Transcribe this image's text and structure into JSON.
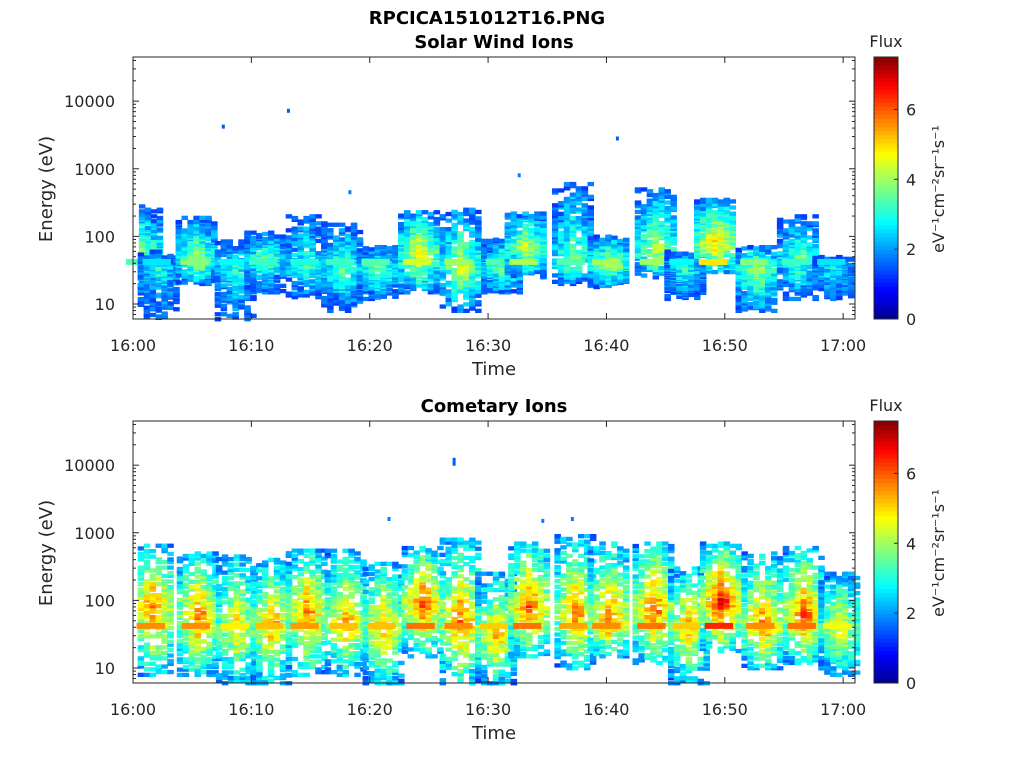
{
  "figure": {
    "filename": "RPCICA151012T16.PNG"
  },
  "colors": {
    "colormap": [
      "#00008f",
      "#0000ff",
      "#00ffff",
      "#ffff00",
      "#ff0000",
      "#800000"
    ]
  },
  "chart_data": [
    {
      "type": "heatmap",
      "title": "Solar Wind Ions",
      "xlabel": "Time",
      "ylabel": "Energy (eV)",
      "x_range": [
        "16:00",
        "17:01"
      ],
      "x_ticks": [
        "16:00",
        "16:10",
        "16:20",
        "16:30",
        "16:40",
        "16:50",
        "17:00"
      ],
      "y_scale": "log",
      "y_range": [
        6,
        45000
      ],
      "y_ticks": [
        10,
        100,
        1000,
        10000
      ],
      "y_tick_labels": [
        "10",
        "100",
        "1000",
        "10000"
      ],
      "colorbar": {
        "label": "Flux",
        "unit": "eV⁻¹cm⁻²sr⁻¹s⁻¹",
        "range": [
          0,
          7.5
        ],
        "ticks": [
          "0",
          "2",
          "4",
          "6"
        ]
      },
      "bursts": [
        {
          "t": 0.6,
          "peak_e": 60,
          "max_e": 280,
          "min_e": 20,
          "intensity": 3.8
        },
        {
          "t": 2.0,
          "peak_e": 35,
          "max_e": 60,
          "min_e": 6,
          "intensity": 3.0
        },
        {
          "t": 5.2,
          "peak_e": 45,
          "max_e": 190,
          "min_e": 20,
          "intensity": 4.2
        },
        {
          "t": 8.5,
          "peak_e": 35,
          "max_e": 90,
          "min_e": 6,
          "intensity": 3.2
        },
        {
          "t": 11.0,
          "peak_e": 50,
          "max_e": 120,
          "min_e": 15,
          "intensity": 3.6
        },
        {
          "t": 14.5,
          "peak_e": 35,
          "max_e": 200,
          "min_e": 12,
          "intensity": 3.4
        },
        {
          "t": 17.5,
          "peak_e": 35,
          "max_e": 150,
          "min_e": 8,
          "intensity": 3.6
        },
        {
          "t": 20.5,
          "peak_e": 35,
          "max_e": 70,
          "min_e": 12,
          "intensity": 3.8
        },
        {
          "t": 24.0,
          "peak_e": 60,
          "max_e": 230,
          "min_e": 15,
          "intensity": 4.8
        },
        {
          "t": 27.5,
          "peak_e": 35,
          "max_e": 250,
          "min_e": 8,
          "intensity": 4.4
        },
        {
          "t": 31.0,
          "peak_e": 35,
          "max_e": 90,
          "min_e": 15,
          "intensity": 3.8
        },
        {
          "t": 33.0,
          "peak_e": 70,
          "max_e": 220,
          "min_e": 25,
          "intensity": 4.5
        },
        {
          "t": 37.0,
          "peak_e": 40,
          "max_e": 600,
          "min_e": 20,
          "intensity": 3.8
        },
        {
          "t": 40.0,
          "peak_e": 40,
          "max_e": 100,
          "min_e": 18,
          "intensity": 4.4
        },
        {
          "t": 44.0,
          "peak_e": 60,
          "max_e": 500,
          "min_e": 25,
          "intensity": 4.4
        },
        {
          "t": 46.5,
          "peak_e": 35,
          "max_e": 60,
          "min_e": 12,
          "intensity": 3.2
        },
        {
          "t": 49.0,
          "peak_e": 80,
          "max_e": 350,
          "min_e": 30,
          "intensity": 5.3
        },
        {
          "t": 52.5,
          "peak_e": 35,
          "max_e": 70,
          "min_e": 8,
          "intensity": 4.2
        },
        {
          "t": 56.0,
          "peak_e": 50,
          "max_e": 200,
          "min_e": 12,
          "intensity": 3.6
        },
        {
          "t": 59.0,
          "peak_e": 35,
          "max_e": 50,
          "min_e": 12,
          "intensity": 3.0
        }
      ],
      "points": [
        {
          "t": 7.5,
          "e": 4200,
          "v": 1.5
        },
        {
          "t": 13.0,
          "e": 7200,
          "v": 1.5
        },
        {
          "t": 40.8,
          "e": 2800,
          "v": 1.5
        },
        {
          "t": 32.5,
          "e": 800,
          "v": 1.8
        },
        {
          "t": 18.2,
          "e": 450,
          "v": 1.8
        }
      ]
    },
    {
      "type": "heatmap",
      "title": "Cometary Ions",
      "xlabel": "Time",
      "ylabel": "Energy (eV)",
      "x_range": [
        "16:00",
        "17:01"
      ],
      "x_ticks": [
        "16:00",
        "16:10",
        "16:20",
        "16:30",
        "16:40",
        "16:50",
        "17:00"
      ],
      "y_scale": "log",
      "y_range": [
        6,
        45000
      ],
      "y_ticks": [
        10,
        100,
        1000,
        10000
      ],
      "y_tick_labels": [
        "10",
        "100",
        "1000",
        "10000"
      ],
      "colorbar": {
        "label": "Flux",
        "unit": "eV⁻¹cm⁻²sr⁻¹s⁻¹",
        "range": [
          0,
          7.5
        ],
        "ticks": [
          "0",
          "2",
          "4",
          "6"
        ]
      },
      "bursts": [
        {
          "t": 1.5,
          "peak_e": 80,
          "max_e": 650,
          "min_e": 8,
          "intensity": 6.0
        },
        {
          "t": 5.3,
          "peak_e": 60,
          "max_e": 500,
          "min_e": 8,
          "intensity": 6.0
        },
        {
          "t": 8.6,
          "peak_e": 40,
          "max_e": 450,
          "min_e": 6,
          "intensity": 5.2
        },
        {
          "t": 11.5,
          "peak_e": 45,
          "max_e": 400,
          "min_e": 6,
          "intensity": 5.6
        },
        {
          "t": 14.5,
          "peak_e": 70,
          "max_e": 550,
          "min_e": 8,
          "intensity": 5.9
        },
        {
          "t": 17.8,
          "peak_e": 45,
          "max_e": 600,
          "min_e": 8,
          "intensity": 5.6
        },
        {
          "t": 21.0,
          "peak_e": 40,
          "max_e": 350,
          "min_e": 6,
          "intensity": 5.6
        },
        {
          "t": 24.3,
          "peak_e": 90,
          "max_e": 600,
          "min_e": 15,
          "intensity": 6.2
        },
        {
          "t": 27.5,
          "peak_e": 50,
          "max_e": 800,
          "min_e": 6,
          "intensity": 6.0
        },
        {
          "t": 30.5,
          "peak_e": 30,
          "max_e": 250,
          "min_e": 6,
          "intensity": 5.5
        },
        {
          "t": 33.3,
          "peak_e": 80,
          "max_e": 700,
          "min_e": 15,
          "intensity": 6.2
        },
        {
          "t": 37.2,
          "peak_e": 60,
          "max_e": 900,
          "min_e": 10,
          "intensity": 5.8
        },
        {
          "t": 40.0,
          "peak_e": 50,
          "max_e": 700,
          "min_e": 15,
          "intensity": 6.0
        },
        {
          "t": 43.8,
          "peak_e": 70,
          "max_e": 700,
          "min_e": 12,
          "intensity": 6.2
        },
        {
          "t": 46.8,
          "peak_e": 45,
          "max_e": 300,
          "min_e": 6,
          "intensity": 5.5
        },
        {
          "t": 49.5,
          "peak_e": 100,
          "max_e": 700,
          "min_e": 18,
          "intensity": 6.8
        },
        {
          "t": 53.0,
          "peak_e": 40,
          "max_e": 500,
          "min_e": 10,
          "intensity": 6.0
        },
        {
          "t": 56.5,
          "peak_e": 60,
          "max_e": 600,
          "min_e": 12,
          "intensity": 6.2
        },
        {
          "t": 59.5,
          "peak_e": 40,
          "max_e": 250,
          "min_e": 8,
          "intensity": 5.0
        }
      ],
      "points": [
        {
          "t": 27.0,
          "e": 10500,
          "v": 1.5
        },
        {
          "t": 27.0,
          "e": 12000,
          "v": 1.5
        },
        {
          "t": 21.5,
          "e": 1600,
          "v": 1.8
        },
        {
          "t": 34.5,
          "e": 1500,
          "v": 1.8
        },
        {
          "t": 37.0,
          "e": 1600,
          "v": 1.8
        }
      ]
    }
  ]
}
